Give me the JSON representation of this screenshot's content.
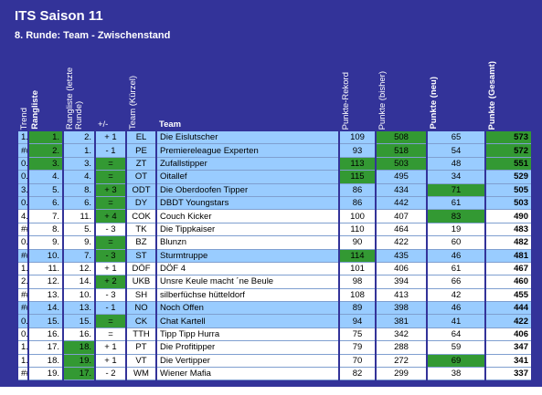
{
  "header": {
    "title": "ITS Saison 11",
    "subtitle": "8. Runde: Team - Zwischenstand"
  },
  "table": {
    "columns": [
      "Trend",
      "Rangliste",
      "Rangliste (letzte Runde)",
      "+/-",
      "Team (Kürzel)",
      "Team",
      "Punkte-Rekord",
      "Punkte (bisher)",
      "Punkte (neu)",
      "Punkte (Gesamt)"
    ],
    "rows": [
      [
        "1.",
        "1.",
        "2.",
        "+ 1",
        "EL",
        "Die Eislutscher",
        109,
        508,
        65,
        573
      ],
      [
        "###",
        "2.",
        "1.",
        "- 1",
        "PE",
        "Premiereleague Experten",
        93,
        518,
        54,
        572
      ],
      [
        "0.",
        "3.",
        "3.",
        "=",
        "ZT",
        "Zufallstipper",
        113,
        503,
        48,
        551
      ],
      [
        "0.",
        "4.",
        "4.",
        "=",
        "OT",
        "Oitallef",
        115,
        495,
        34,
        529
      ],
      [
        "3.",
        "5.",
        "8.",
        "+ 3",
        "ODT",
        "Die Oberdoofen Tipper",
        86,
        434,
        71,
        505
      ],
      [
        "0.",
        "6.",
        "6.",
        "=",
        "DY",
        "DBDT Youngstars",
        86,
        442,
        61,
        503
      ],
      [
        "4.",
        "7.",
        "11.",
        "+ 4",
        "COK",
        "Couch Kicker",
        100,
        407,
        83,
        490
      ],
      [
        "###",
        "8.",
        "5.",
        "- 3",
        "TK",
        "Die Tippkaiser",
        110,
        464,
        19,
        483
      ],
      [
        "0.",
        "9.",
        "9.",
        "=",
        "BZ",
        "Blunzn",
        90,
        422,
        60,
        482
      ],
      [
        "###",
        "10.",
        "7.",
        "- 3",
        "ST",
        "Sturmtruppe",
        114,
        435,
        46,
        481
      ],
      [
        "1.",
        "11.",
        "12.",
        "+ 1",
        "DÖF",
        "DÖF 4",
        101,
        406,
        61,
        467
      ],
      [
        "2.",
        "12.",
        "14.",
        "+ 2",
        "UKB",
        "Unsre Keule macht ´ne Beule",
        98,
        394,
        66,
        460
      ],
      [
        "###",
        "13.",
        "10.",
        "- 3",
        "SH",
        "silberfüchse hütteldorf",
        108,
        413,
        42,
        455
      ],
      [
        "###",
        "14.",
        "13.",
        "- 1",
        "NO",
        "Noch Offen",
        89,
        398,
        46,
        444
      ],
      [
        "0.",
        "15.",
        "15.",
        "=",
        "CK",
        "Chat Kartell",
        94,
        381,
        41,
        422
      ],
      [
        "0.",
        "16.",
        "16.",
        "=",
        "TTH",
        "Tipp Tipp Hurra",
        75,
        342,
        64,
        406
      ],
      [
        "1.",
        "17.",
        "18.",
        "+ 1",
        "PT",
        "Die Profitipper",
        79,
        288,
        59,
        347
      ],
      [
        "1.",
        "18.",
        "19.",
        "+ 1",
        "VT",
        "Die Vertipper",
        70,
        272,
        69,
        341
      ],
      [
        "###",
        "19.",
        "17.",
        "- 2",
        "WM",
        "Wiener Mafia",
        82,
        299,
        38,
        337
      ]
    ]
  }
}
